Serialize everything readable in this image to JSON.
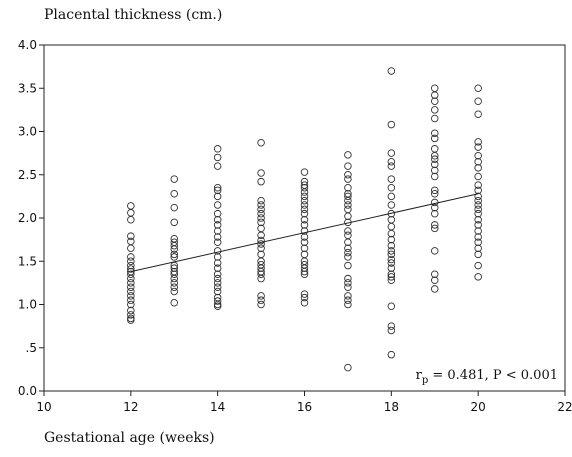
{
  "chart_data": {
    "type": "scatter",
    "title": "",
    "ylabel": "Placental thickness (cm.)",
    "xlabel": "Gestational age (weeks)",
    "xlim": [
      10,
      22
    ],
    "ylim": [
      0.0,
      4.0
    ],
    "x_ticks": [
      10,
      12,
      14,
      16,
      18,
      20,
      22
    ],
    "x_tick_labels": [
      "10",
      "12",
      "14",
      "16",
      "18",
      "20",
      "22"
    ],
    "y_ticks": [
      0.0,
      0.5,
      1.0,
      1.5,
      2.0,
      2.5,
      3.0,
      3.5,
      4.0
    ],
    "y_tick_labels": [
      "0.0",
      ".5",
      "1.0",
      "1.5",
      "2.0",
      "2.5",
      "3.0",
      "3.5",
      "4.0"
    ],
    "grid": false,
    "annotation": {
      "r_symbol": "r",
      "r_subscript": "p",
      "rest": " = 0.481, P < 0.001"
    },
    "trendline": {
      "x": [
        12,
        20
      ],
      "y": [
        1.38,
        2.28
      ]
    },
    "points": [
      {
        "x": 12,
        "ys": [
          2.14,
          2.06,
          1.98,
          1.79,
          1.73,
          1.65,
          1.55,
          1.5,
          1.45,
          1.41,
          1.38,
          1.35,
          1.3,
          1.25,
          1.2,
          1.15,
          1.1,
          1.05,
          1.0,
          0.93,
          0.88,
          0.84,
          0.82
        ]
      },
      {
        "x": 13,
        "ys": [
          2.45,
          2.28,
          2.12,
          1.95,
          1.76,
          1.72,
          1.68,
          1.64,
          1.58,
          1.55,
          1.45,
          1.42,
          1.38,
          1.35,
          1.3,
          1.25,
          1.2,
          1.15,
          1.02
        ]
      },
      {
        "x": 14,
        "ys": [
          2.8,
          2.7,
          2.6,
          2.35,
          2.32,
          2.25,
          2.15,
          2.05,
          1.98,
          1.92,
          1.85,
          1.78,
          1.72,
          1.62,
          1.55,
          1.48,
          1.42,
          1.35,
          1.3,
          1.25,
          1.2,
          1.15,
          1.08,
          1.04,
          1.0,
          0.98
        ]
      },
      {
        "x": 15,
        "ys": [
          2.87,
          2.52,
          2.42,
          2.2,
          2.15,
          2.1,
          2.05,
          2.0,
          1.95,
          1.88,
          1.8,
          1.74,
          1.7,
          1.65,
          1.58,
          1.5,
          1.46,
          1.42,
          1.38,
          1.35,
          1.3,
          1.1,
          1.05,
          1.0
        ]
      },
      {
        "x": 16,
        "ys": [
          2.53,
          2.42,
          2.38,
          2.35,
          2.3,
          2.25,
          2.2,
          2.15,
          2.1,
          2.05,
          1.98,
          1.92,
          1.85,
          1.78,
          1.72,
          1.65,
          1.58,
          1.5,
          1.46,
          1.42,
          1.38,
          1.35,
          1.12,
          1.08,
          1.02
        ]
      },
      {
        "x": 17,
        "ys": [
          2.73,
          2.6,
          2.5,
          2.45,
          2.35,
          2.28,
          2.25,
          2.2,
          2.15,
          2.1,
          2.02,
          1.95,
          1.85,
          1.8,
          1.72,
          1.65,
          1.6,
          1.55,
          1.45,
          1.3,
          1.25,
          1.2,
          1.1,
          1.05,
          1.0,
          0.27
        ]
      },
      {
        "x": 18,
        "ys": [
          3.7,
          3.08,
          2.75,
          2.65,
          2.6,
          2.45,
          2.35,
          2.25,
          2.15,
          2.05,
          1.98,
          1.9,
          1.82,
          1.75,
          1.68,
          1.62,
          1.58,
          1.52,
          1.48,
          1.42,
          1.35,
          1.32,
          1.28,
          0.98,
          0.75,
          0.7,
          0.42
        ]
      },
      {
        "x": 19,
        "ys": [
          3.5,
          3.42,
          3.35,
          3.25,
          3.15,
          2.98,
          2.92,
          2.8,
          2.72,
          2.68,
          2.62,
          2.55,
          2.48,
          2.32,
          2.28,
          2.18,
          2.12,
          2.05,
          1.92,
          1.88,
          1.62,
          1.35,
          1.28,
          1.18
        ]
      },
      {
        "x": 20,
        "ys": [
          3.5,
          3.35,
          3.2,
          2.88,
          2.82,
          2.72,
          2.65,
          2.58,
          2.48,
          2.38,
          2.32,
          2.25,
          2.2,
          2.15,
          2.1,
          2.05,
          1.98,
          1.92,
          1.85,
          1.78,
          1.72,
          1.65,
          1.58,
          1.45,
          1.32
        ]
      }
    ]
  }
}
